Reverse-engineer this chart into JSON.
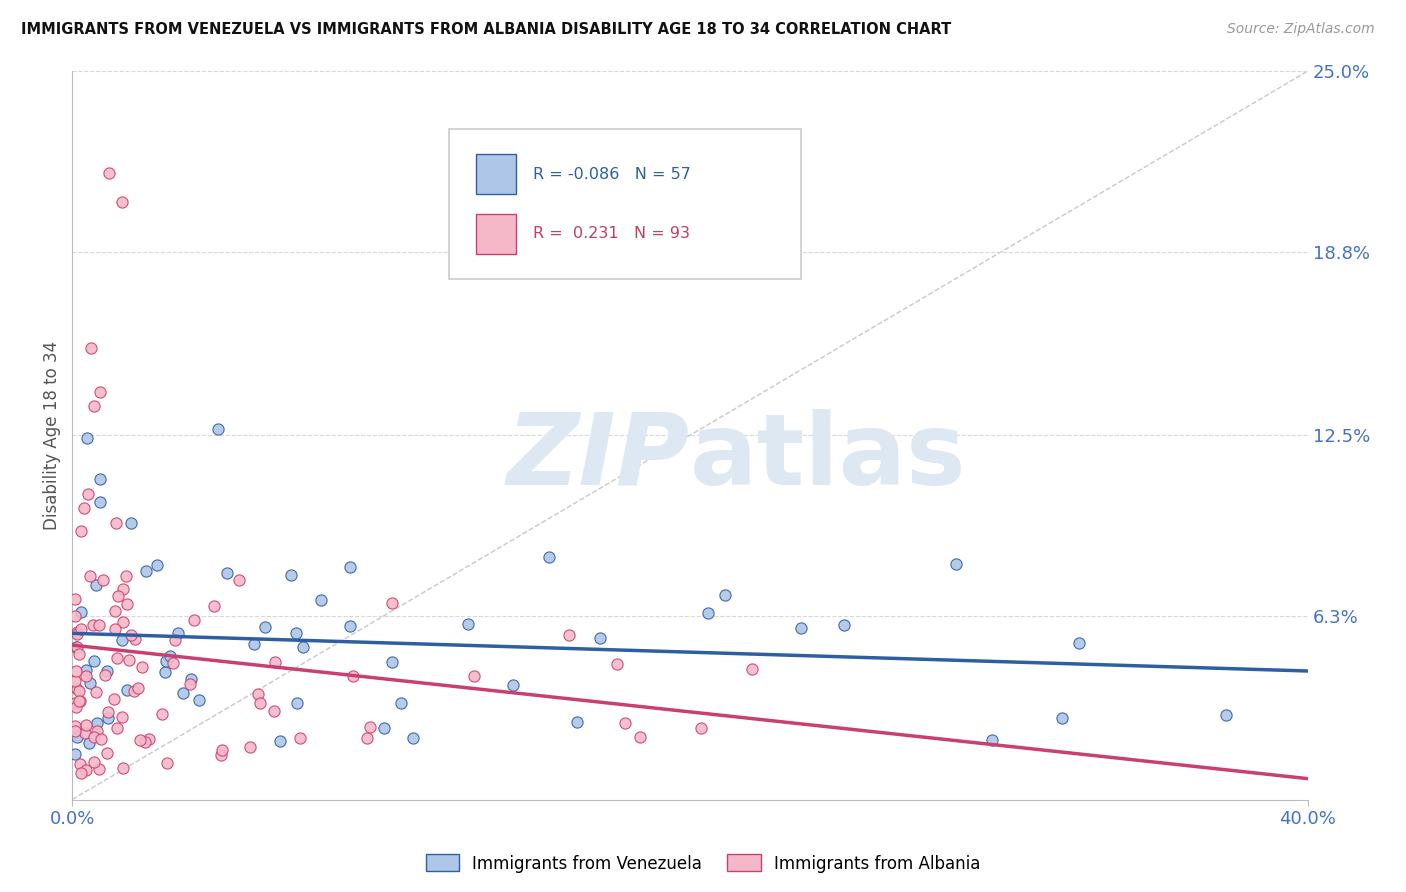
{
  "title": "IMMIGRANTS FROM VENEZUELA VS IMMIGRANTS FROM ALBANIA DISABILITY AGE 18 TO 34 CORRELATION CHART",
  "source": "Source: ZipAtlas.com",
  "ylabel": "Disability Age 18 to 34",
  "xlim": [
    0.0,
    0.4
  ],
  "ylim": [
    0.0,
    0.25
  ],
  "ytick_labels": [
    "6.3%",
    "12.5%",
    "18.8%",
    "25.0%"
  ],
  "ytick_values": [
    0.063,
    0.125,
    0.188,
    0.25
  ],
  "r_venezuela": -0.086,
  "n_venezuela": 57,
  "r_albania": 0.231,
  "n_albania": 93,
  "color_venezuela": "#aec6e8",
  "color_albania": "#f4b8c8",
  "color_venezuela_line": "#2e5fa3",
  "color_albania_line": "#c94070",
  "color_diagonal": "#c8c8c8",
  "color_grid": "#d8d8d8",
  "color_rtxt_venezuela": "#2e5fa3",
  "color_rtxt_albania": "#c04060",
  "background_color": "#ffffff",
  "watermark_color": "#dde8f2"
}
